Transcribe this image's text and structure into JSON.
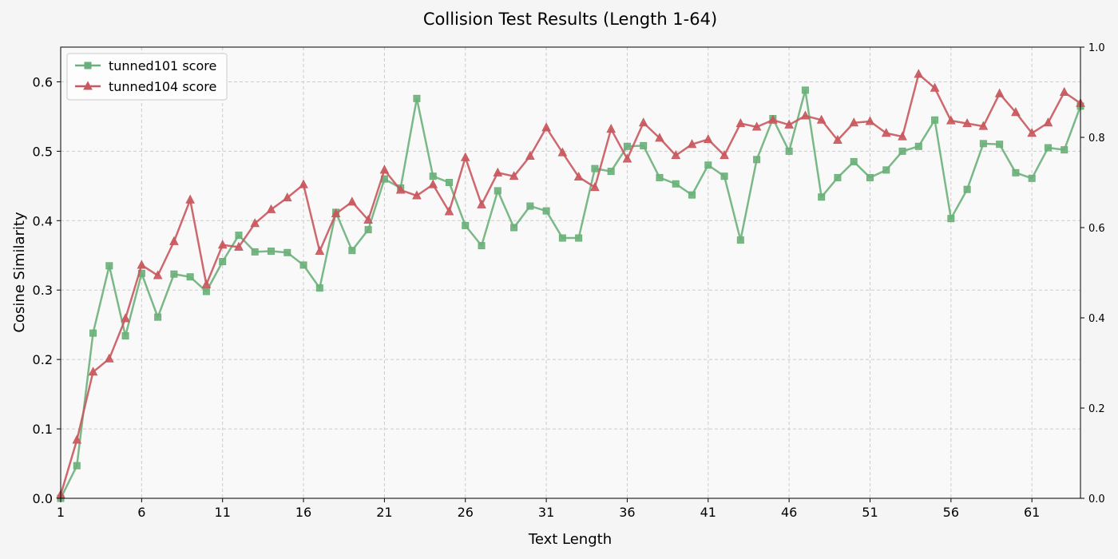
{
  "chart_data": {
    "type": "line",
    "title": "Collision Test Results (Length 1-64)",
    "xlabel": "Text Length",
    "ylabel": "Cosine Similarity",
    "xlim": [
      1,
      64
    ],
    "ylim": [
      0,
      0.65
    ],
    "y2lim": [
      0,
      1.0
    ],
    "x_ticks": [
      1,
      6,
      11,
      16,
      21,
      26,
      31,
      36,
      41,
      46,
      51,
      56,
      61
    ],
    "y_ticks": [
      0.0,
      0.1,
      0.2,
      0.3,
      0.4,
      0.5,
      0.6
    ],
    "y_tick_labels": [
      "0.0",
      "0.1",
      "0.2",
      "0.3",
      "0.4",
      "0.5",
      "0.6"
    ],
    "y2_ticks": [
      0.0,
      0.2,
      0.4,
      0.6,
      0.8,
      1.0
    ],
    "y2_tick_labels": [
      "0.0",
      "0.2",
      "0.4",
      "0.6",
      "0.8",
      "1.0"
    ],
    "grid": true,
    "legend_position": "top-left",
    "x": [
      1,
      2,
      3,
      4,
      5,
      6,
      7,
      8,
      9,
      10,
      11,
      12,
      13,
      14,
      15,
      16,
      17,
      18,
      19,
      20,
      21,
      22,
      23,
      24,
      25,
      26,
      27,
      28,
      29,
      30,
      31,
      32,
      33,
      34,
      35,
      36,
      37,
      38,
      39,
      40,
      41,
      42,
      43,
      44,
      45,
      46,
      47,
      48,
      49,
      50,
      51,
      52,
      53,
      54,
      55,
      56,
      57,
      58,
      59,
      60,
      61,
      62,
      63,
      64
    ],
    "series": [
      {
        "name": "tunned101 score",
        "color": "#6bb07a",
        "marker": "square",
        "values": [
          0.0,
          0.047,
          0.238,
          0.335,
          0.234,
          0.324,
          0.261,
          0.323,
          0.319,
          0.298,
          0.341,
          0.379,
          0.355,
          0.356,
          0.354,
          0.336,
          0.303,
          0.412,
          0.357,
          0.387,
          0.46,
          0.447,
          0.576,
          0.464,
          0.455,
          0.393,
          0.364,
          0.443,
          0.39,
          0.421,
          0.414,
          0.375,
          0.375,
          0.475,
          0.471,
          0.507,
          0.508,
          0.462,
          0.453,
          0.437,
          0.48,
          0.464,
          0.372,
          0.488,
          0.547,
          0.5,
          0.588,
          0.434,
          0.462,
          0.485,
          0.462,
          0.473,
          0.5,
          0.507,
          0.545,
          0.403,
          0.445,
          0.511,
          0.51,
          0.469,
          0.461,
          0.505,
          0.502,
          0.565
        ]
      },
      {
        "name": "tunned104 score",
        "color": "#c8595e",
        "marker": "triangle",
        "values": [
          0.005,
          0.084,
          0.182,
          0.201,
          0.259,
          0.336,
          0.321,
          0.37,
          0.43,
          0.308,
          0.365,
          0.362,
          0.396,
          0.416,
          0.433,
          0.452,
          0.356,
          0.41,
          0.427,
          0.401,
          0.473,
          0.444,
          0.436,
          0.452,
          0.413,
          0.491,
          0.423,
          0.469,
          0.464,
          0.493,
          0.534,
          0.498,
          0.463,
          0.448,
          0.532,
          0.489,
          0.541,
          0.519,
          0.494,
          0.51,
          0.517,
          0.494,
          0.54,
          0.535,
          0.545,
          0.538,
          0.551,
          0.545,
          0.516,
          0.541,
          0.543,
          0.526,
          0.521,
          0.611,
          0.591,
          0.544,
          0.54,
          0.536,
          0.583,
          0.556,
          0.526,
          0.541,
          0.585,
          0.569
        ]
      }
    ]
  }
}
